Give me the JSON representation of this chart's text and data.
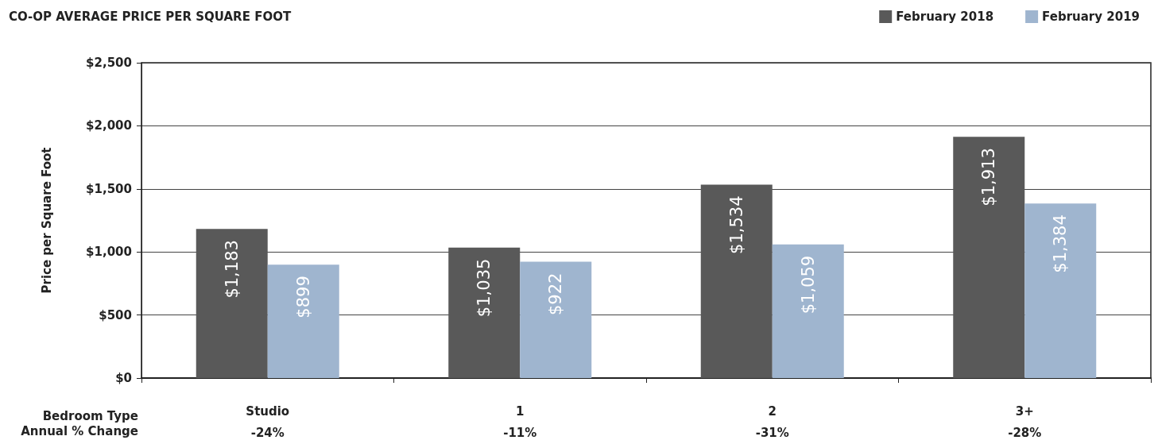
{
  "chart_data": {
    "type": "bar",
    "title": "CO-OP AVERAGE PRICE PER SQUARE FOOT",
    "ylabel": "Price per Square Foot",
    "xlabel": "Bedroom Type",
    "categories": [
      "Studio",
      "1",
      "2",
      "3+"
    ],
    "series": [
      {
        "name": "February 2018",
        "color": "#595959",
        "values": [
          1183,
          1035,
          1534,
          1913
        ],
        "value_labels": [
          "$1,183",
          "$1,035",
          "$1,534",
          "$1,913"
        ]
      },
      {
        "name": "February 2019",
        "color": "#9fb5cf",
        "values": [
          899,
          922,
          1059,
          1384
        ],
        "value_labels": [
          "$899",
          "$922",
          "$1,059",
          "$1,384"
        ]
      }
    ],
    "ylim": [
      0,
      2500
    ],
    "yticks": [
      {
        "value": 0,
        "label": "$0"
      },
      {
        "value": 500,
        "label": "$500"
      },
      {
        "value": 1000,
        "label": "$1,000"
      },
      {
        "value": 1500,
        "label": "$1,500"
      },
      {
        "value": 2000,
        "label": "$2,000"
      },
      {
        "value": 2500,
        "label": "$2,500"
      }
    ],
    "grid": "y",
    "legend": "top right",
    "annotations": [
      "Annual % Change",
      "-24%",
      "-11%",
      "-31%",
      "-28%"
    ]
  }
}
